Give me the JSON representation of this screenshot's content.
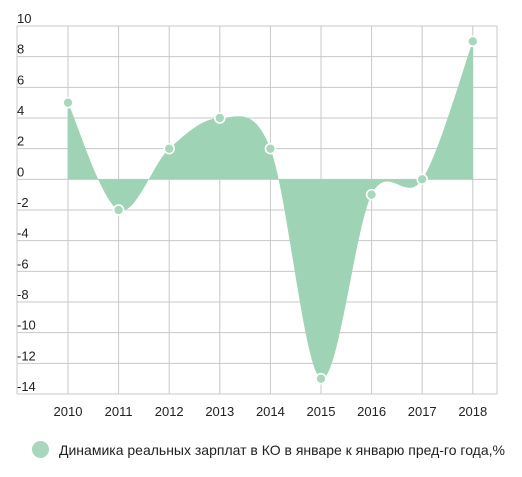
{
  "chart_data": {
    "type": "area",
    "x": [
      "2010",
      "2011",
      "2012",
      "2013",
      "2014",
      "2015",
      "2016",
      "2017",
      "2018"
    ],
    "series": [
      {
        "name": "Динамика реальных зарплат в КО в январе к январю пред-го года,%",
        "values": [
          5,
          -2,
          2,
          4,
          2,
          -13,
          -1,
          0,
          9
        ]
      }
    ],
    "ylim": [
      -14,
      10
    ],
    "yticks": [
      "10",
      "8",
      "6",
      "4",
      "2",
      "0",
      "-2",
      "-4",
      "-6",
      "-8",
      "-10",
      "-12",
      "-14"
    ],
    "grid": true,
    "legend_position": "bottom-left",
    "colors": {
      "fill": "#9fd3b6",
      "marker": "#a8d7bd",
      "marker_stroke": "#ffffff",
      "grid": "#c8c8c8"
    }
  }
}
